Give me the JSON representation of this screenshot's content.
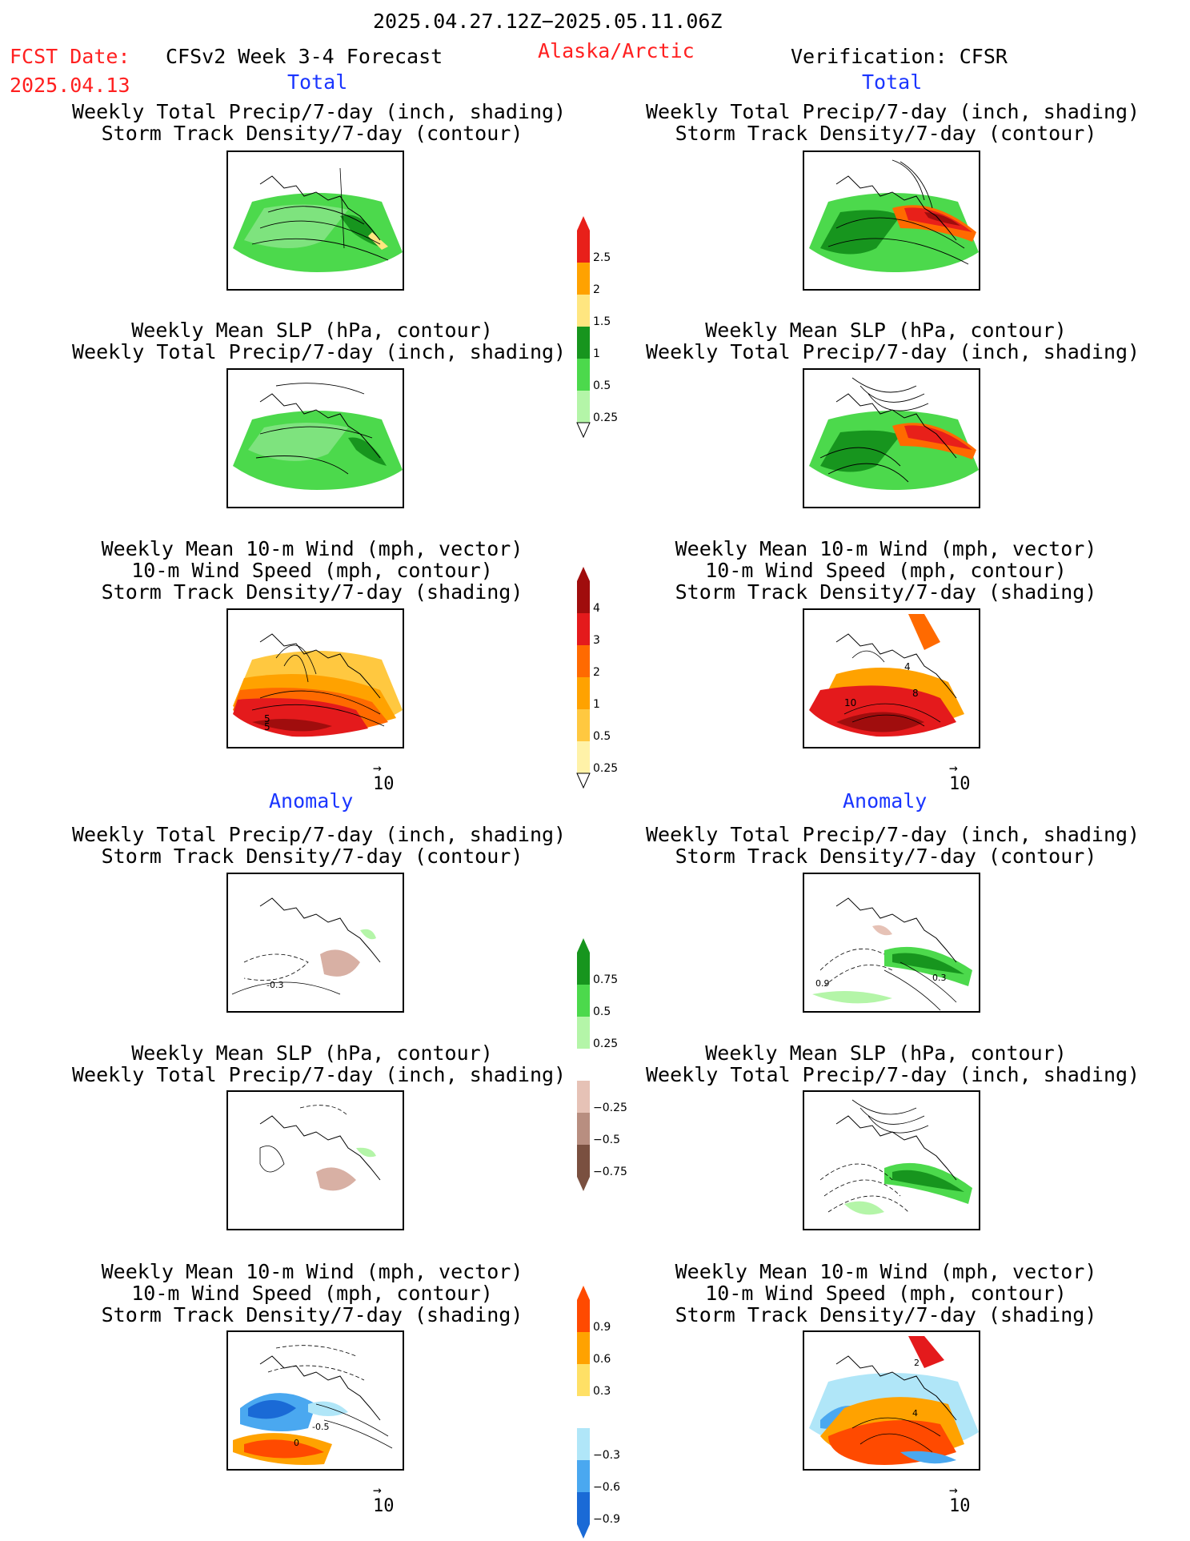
{
  "header": {
    "period": "2025.04.27.12Z−2025.05.11.06Z",
    "fcst_label": "FCST Date:",
    "fcst_date": "2025.04.13",
    "model": "CFSv2 Week 3-4 Forecast",
    "region": "Alaska/Arctic",
    "verification": "Verification: CFSR"
  },
  "sections": {
    "total": "Total",
    "anomaly": "Anomaly"
  },
  "titles": {
    "precip_storm": [
      "Weekly Total Precip/7-day (inch, shading)",
      "Storm Track Density/7-day (contour)"
    ],
    "slp_precip": [
      "Weekly Mean SLP (hPa, contour)",
      "Weekly Total Precip/7-day (inch, shading)"
    ],
    "wind_storm": [
      "Weekly Mean 10-m Wind (mph, vector)",
      "10-m Wind Speed (mph, contour)",
      "Storm Track Density/7-day (shading)"
    ]
  },
  "vector_ref": "10",
  "contour_labels": {
    "fc_wind_total": [
      "5",
      "5"
    ],
    "ob_wind_total": [
      "10",
      "4",
      "8"
    ],
    "fc_precip_anom": [
      "-0.3"
    ],
    "ob_precip_anom": [
      "0.9",
      "0.3"
    ],
    "fc_wind_anom": [
      "-0.5",
      "0"
    ],
    "ob_wind_anom": [
      "2",
      "4"
    ]
  },
  "colorbars": [
    {
      "name": "precip-total-colorbar",
      "labels": [
        "2.5",
        "2",
        "1.5",
        "1",
        "0.5",
        "0.25"
      ],
      "colors": [
        "#e8201a",
        "#ffa200",
        "#ffe680",
        "#17951e",
        "#4cd94c",
        "#b4f5a8"
      ]
    },
    {
      "name": "storm-track-total-colorbar",
      "labels": [
        "4",
        "3",
        "2",
        "1",
        "0.5",
        "0.25"
      ],
      "colors": [
        "#a00d0d",
        "#e41a1c",
        "#ff6a00",
        "#ffa200",
        "#ffc840",
        "#fff2a8"
      ]
    },
    {
      "name": "precip-anomaly-colorbar",
      "labels": [
        "0.75",
        "0.5",
        "0.25",
        "−0.25",
        "−0.5",
        "−0.75"
      ],
      "colors": [
        "#17951e",
        "#4cd94c",
        "#b4f5a8",
        "#ffffff",
        "#e6c2b6",
        "#b88e80",
        "#7a5040"
      ]
    },
    {
      "name": "storm-track-anomaly-colorbar",
      "labels": [
        "0.9",
        "0.6",
        "0.3",
        "−0.3",
        "−0.6",
        "−0.9"
      ],
      "colors": [
        "#ff4a00",
        "#ffa200",
        "#ffe066",
        "#ffffff",
        "#b0e6f8",
        "#4aa8f0",
        "#1a6ad6"
      ]
    }
  ],
  "colors": {
    "accent_red": "#ff2020",
    "accent_blue": "#1a35ff"
  }
}
